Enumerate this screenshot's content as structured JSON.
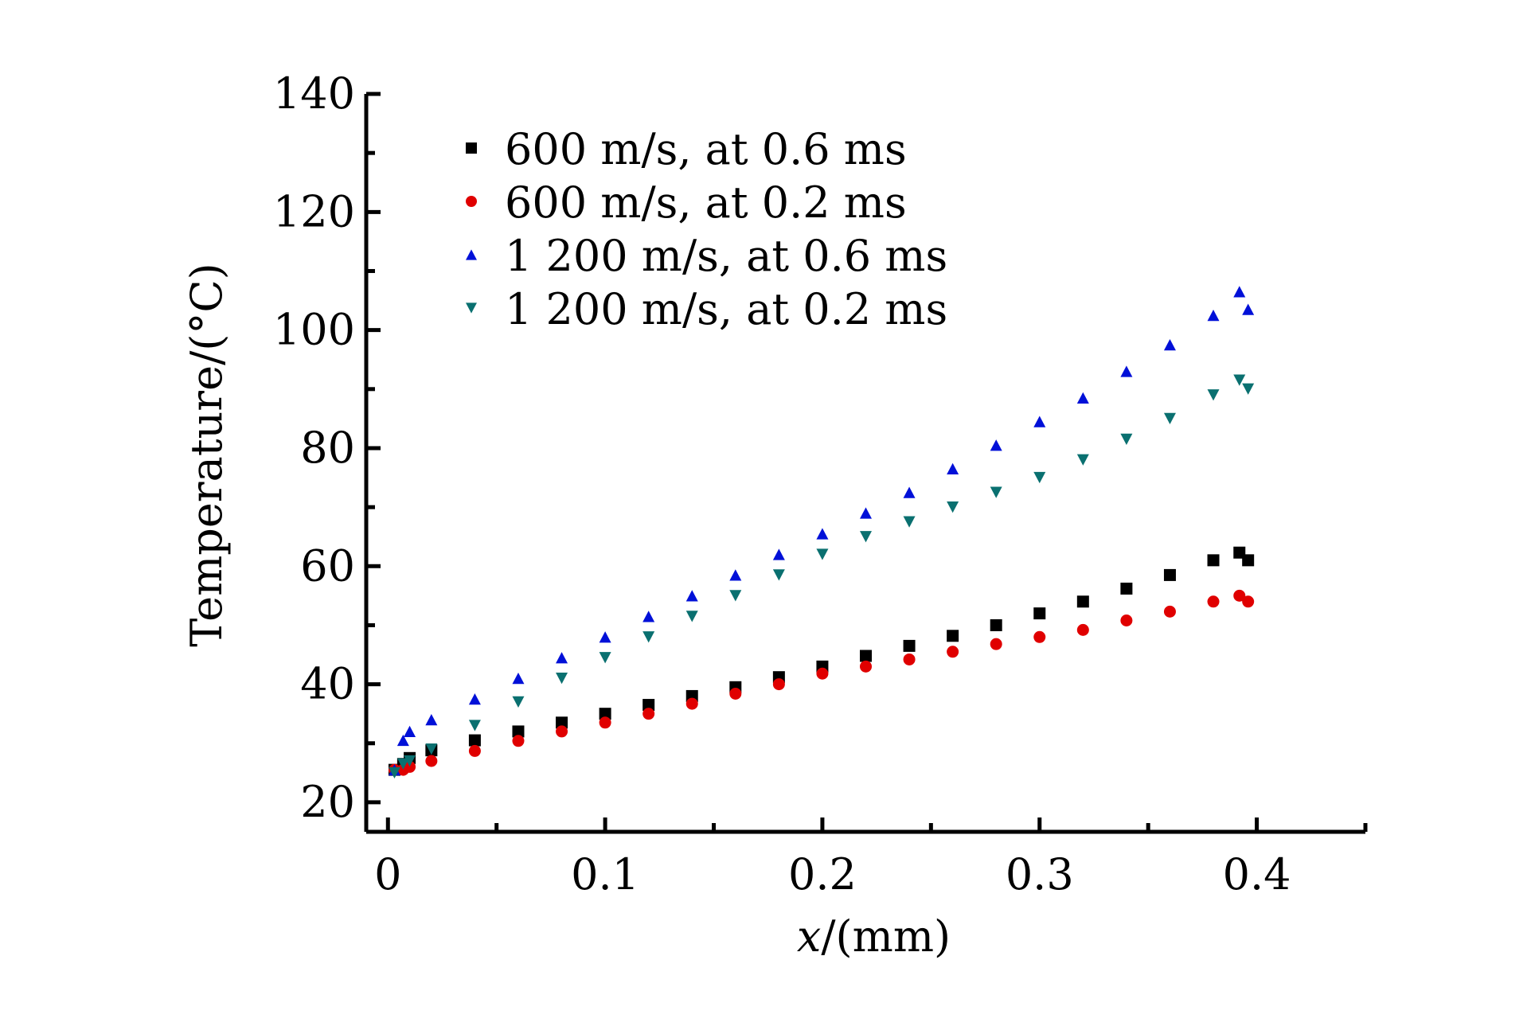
{
  "chart_data": {
    "type": "scatter",
    "title": "",
    "xlabel_italic": "x",
    "xlabel_rest": "/(mm)",
    "ylabel": "Temperature/(°C)",
    "xlim": [
      -0.01,
      0.45
    ],
    "ylim": [
      15,
      140
    ],
    "xticks": [
      0,
      0.1,
      0.2,
      0.3,
      0.4
    ],
    "xtick_labels": [
      "0",
      "0.1",
      "0.2",
      "0.3",
      "0.4"
    ],
    "yticks": [
      20,
      40,
      60,
      80,
      100,
      120,
      140
    ],
    "ytick_labels": [
      "20",
      "40",
      "60",
      "80",
      "100",
      "120",
      "140"
    ],
    "legend_position": "top-left",
    "series": [
      {
        "name": "600 m/s, at 0.6 ms",
        "marker": "square",
        "color": "#000000",
        "x": [
          0.003,
          0.007,
          0.01,
          0.02,
          0.04,
          0.06,
          0.08,
          0.1,
          0.12,
          0.14,
          0.16,
          0.18,
          0.2,
          0.22,
          0.24,
          0.26,
          0.28,
          0.3,
          0.32,
          0.34,
          0.36,
          0.38,
          0.392,
          0.396
        ],
        "values": [
          25.5,
          26.5,
          27.5,
          28.8,
          30.5,
          32.0,
          33.5,
          35.0,
          36.5,
          38.0,
          39.5,
          41.2,
          43.0,
          44.8,
          46.5,
          48.2,
          50.0,
          52.0,
          54.0,
          56.2,
          58.5,
          61.0,
          62.3,
          61.0
        ]
      },
      {
        "name": "600 m/s, at 0.2 ms",
        "marker": "circle",
        "color": "#e00000",
        "x": [
          0.003,
          0.007,
          0.01,
          0.02,
          0.04,
          0.06,
          0.08,
          0.1,
          0.12,
          0.14,
          0.16,
          0.18,
          0.2,
          0.22,
          0.24,
          0.26,
          0.28,
          0.3,
          0.32,
          0.34,
          0.36,
          0.38,
          0.392,
          0.396
        ],
        "values": [
          25.5,
          25.5,
          26.0,
          27.0,
          28.7,
          30.4,
          32.0,
          33.5,
          35.0,
          36.7,
          38.4,
          40.0,
          41.8,
          43.0,
          44.2,
          45.5,
          46.8,
          48.0,
          49.2,
          50.8,
          52.3,
          54.0,
          55.0,
          54.0
        ]
      },
      {
        "name": "1 200 m/s, at 0.6 ms",
        "marker": "triangle-up",
        "color": "#0010d8",
        "x": [
          0.003,
          0.007,
          0.01,
          0.02,
          0.04,
          0.06,
          0.08,
          0.1,
          0.12,
          0.14,
          0.16,
          0.18,
          0.2,
          0.22,
          0.24,
          0.26,
          0.28,
          0.3,
          0.32,
          0.34,
          0.36,
          0.38,
          0.392,
          0.396
        ],
        "values": [
          25.5,
          30.5,
          32.0,
          34.0,
          37.5,
          41.0,
          44.5,
          48.0,
          51.5,
          55.0,
          58.5,
          62.0,
          65.5,
          69.0,
          72.5,
          76.5,
          80.5,
          84.5,
          88.5,
          93.0,
          97.5,
          102.5,
          106.5,
          103.5
        ]
      },
      {
        "name": "1 200 m/s, at 0.2 ms",
        "marker": "triangle-down",
        "color": "#0a7070",
        "x": [
          0.003,
          0.007,
          0.01,
          0.02,
          0.04,
          0.06,
          0.08,
          0.1,
          0.12,
          0.14,
          0.16,
          0.18,
          0.2,
          0.22,
          0.24,
          0.26,
          0.28,
          0.3,
          0.32,
          0.34,
          0.36,
          0.38,
          0.392,
          0.396
        ],
        "values": [
          25.0,
          26.5,
          27.0,
          29.0,
          33.0,
          37.0,
          41.0,
          44.5,
          48.0,
          51.5,
          55.0,
          58.5,
          62.0,
          65.0,
          67.5,
          70.0,
          72.5,
          75.0,
          78.0,
          81.5,
          85.0,
          89.0,
          91.5,
          90.0
        ]
      }
    ]
  }
}
